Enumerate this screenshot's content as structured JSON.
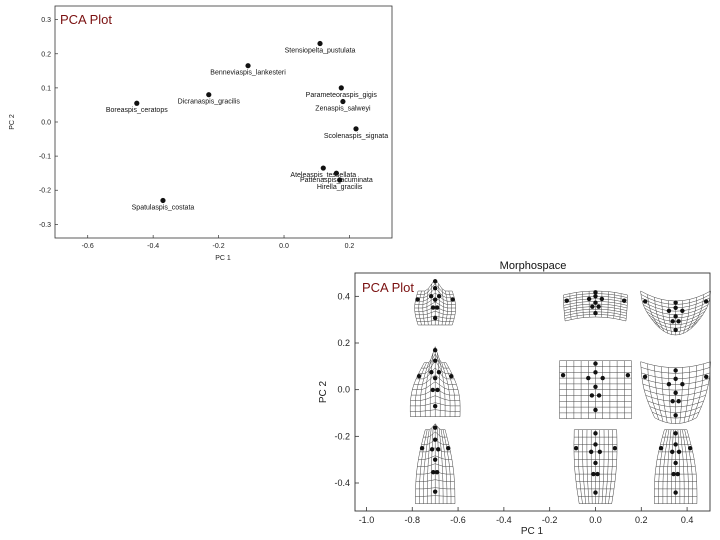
{
  "chart_data": [
    {
      "type": "scatter",
      "title": "PCA Plot",
      "xlabel": "PC 1",
      "ylabel": "PC 2",
      "xlim": [
        -0.7,
        0.33
      ],
      "ylim": [
        -0.34,
        0.34
      ],
      "xticks": [
        "-0.6",
        "-0.4",
        "-0.2",
        "0.0",
        "0.2"
      ],
      "yticks": [
        "-0.3",
        "-0.2",
        "-0.1",
        "0.0",
        "0.1",
        "0.2",
        "0.3"
      ],
      "points": [
        {
          "label": "Stensiopelta_pustulata",
          "x": 0.11,
          "y": 0.23
        },
        {
          "label": "Benneviaspis_lankesteri",
          "x": -0.11,
          "y": 0.165
        },
        {
          "label": "Dicranaspis_gracilis",
          "x": -0.23,
          "y": 0.08
        },
        {
          "label": "Boreaspis_ceratops",
          "x": -0.45,
          "y": 0.055
        },
        {
          "label": "Parameteoraspis_gigis",
          "x": 0.175,
          "y": 0.1
        },
        {
          "label": "Zenaspis_salweyi",
          "x": 0.18,
          "y": 0.06
        },
        {
          "label": "Scolenaspis_signata",
          "x": 0.22,
          "y": -0.02
        },
        {
          "label": "Ateleaspis_tessellata",
          "x": 0.12,
          "y": -0.135
        },
        {
          "label": "Pattenaspis_acuminata",
          "x": 0.16,
          "y": -0.15
        },
        {
          "label": "Hirella_gracilis",
          "x": 0.17,
          "y": -0.17
        },
        {
          "label": "Spatulaspis_costata",
          "x": -0.37,
          "y": -0.23
        }
      ]
    },
    {
      "type": "scatter",
      "title": "Morphospace",
      "overlay_label": "PCA Plot",
      "xlabel": "PC 1",
      "ylabel": "PC 2",
      "xlim": [
        -1.05,
        0.5
      ],
      "ylim": [
        -0.52,
        0.5
      ],
      "xticks": [
        "-1.0",
        "-0.8",
        "-0.6",
        "-0.4",
        "-0.2",
        "0.0",
        "0.2",
        "0.4"
      ],
      "yticks": [
        "-0.4",
        "-0.2",
        "0.0",
        "0.2",
        "0.4"
      ],
      "shape_grids": [
        {
          "x": -0.7,
          "y": 0.35,
          "shape": "headshield-wide"
        },
        {
          "x": 0.0,
          "y": 0.35,
          "shape": "flat"
        },
        {
          "x": 0.35,
          "y": 0.35,
          "shape": "curved"
        },
        {
          "x": -0.7,
          "y": 0.0,
          "shape": "headshield-tall"
        },
        {
          "x": 0.0,
          "y": 0.0,
          "shape": "square"
        },
        {
          "x": 0.35,
          "y": 0.0,
          "shape": "bulge"
        },
        {
          "x": -0.7,
          "y": -0.33,
          "shape": "headshield-narrow"
        },
        {
          "x": 0.0,
          "y": -0.33,
          "shape": "vase"
        },
        {
          "x": 0.35,
          "y": -0.33,
          "shape": "bell"
        }
      ]
    }
  ]
}
